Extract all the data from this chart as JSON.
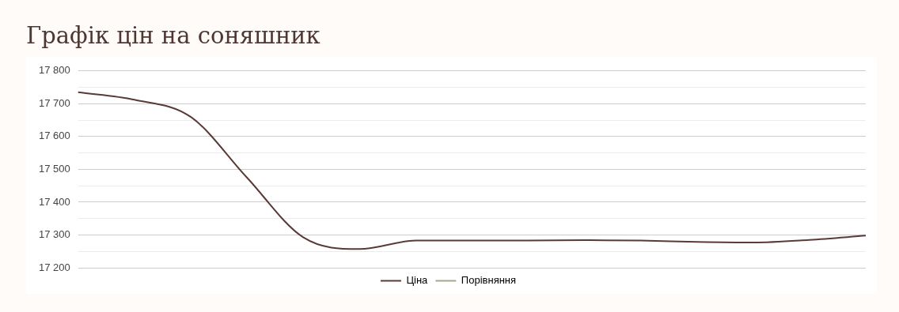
{
  "chart_data": {
    "type": "line",
    "title": "Графік цін на соняшник",
    "categories": [
      null,
      null,
      null,
      null,
      null,
      null,
      null,
      null,
      null,
      null,
      null,
      null,
      null,
      null,
      null
    ],
    "series": [
      {
        "name": "Ціна",
        "color": "#5a3a36",
        "values": [
          17735,
          17712,
          17660,
          17475,
          17293,
          17257,
          17283,
          17283,
          17283,
          17284,
          17283,
          17279,
          17277,
          17285,
          17298
        ]
      },
      {
        "name": "Порівняння",
        "color": "#a3a88f",
        "values": [
          null,
          null,
          null,
          null,
          null,
          null,
          null,
          null,
          null,
          null,
          null,
          null,
          null,
          null,
          null
        ]
      }
    ],
    "ylim": [
      17200,
      17800
    ],
    "yticks": [
      {
        "value": 17200,
        "label": "17 200"
      },
      {
        "value": 17250,
        "label": null
      },
      {
        "value": 17300,
        "label": "17 300"
      },
      {
        "value": 17350,
        "label": null
      },
      {
        "value": 17400,
        "label": "17 400"
      },
      {
        "value": 17450,
        "label": null
      },
      {
        "value": 17500,
        "label": "17 500"
      },
      {
        "value": 17550,
        "label": null
      },
      {
        "value": 17600,
        "label": "17 600"
      },
      {
        "value": 17650,
        "label": null
      },
      {
        "value": 17700,
        "label": "17 700"
      },
      {
        "value": 17750,
        "label": null
      },
      {
        "value": 17800,
        "label": "17 800"
      }
    ],
    "grid": "y",
    "legend": "bottom",
    "marker": "none",
    "line_style": "solid",
    "tick_labels": "y"
  }
}
